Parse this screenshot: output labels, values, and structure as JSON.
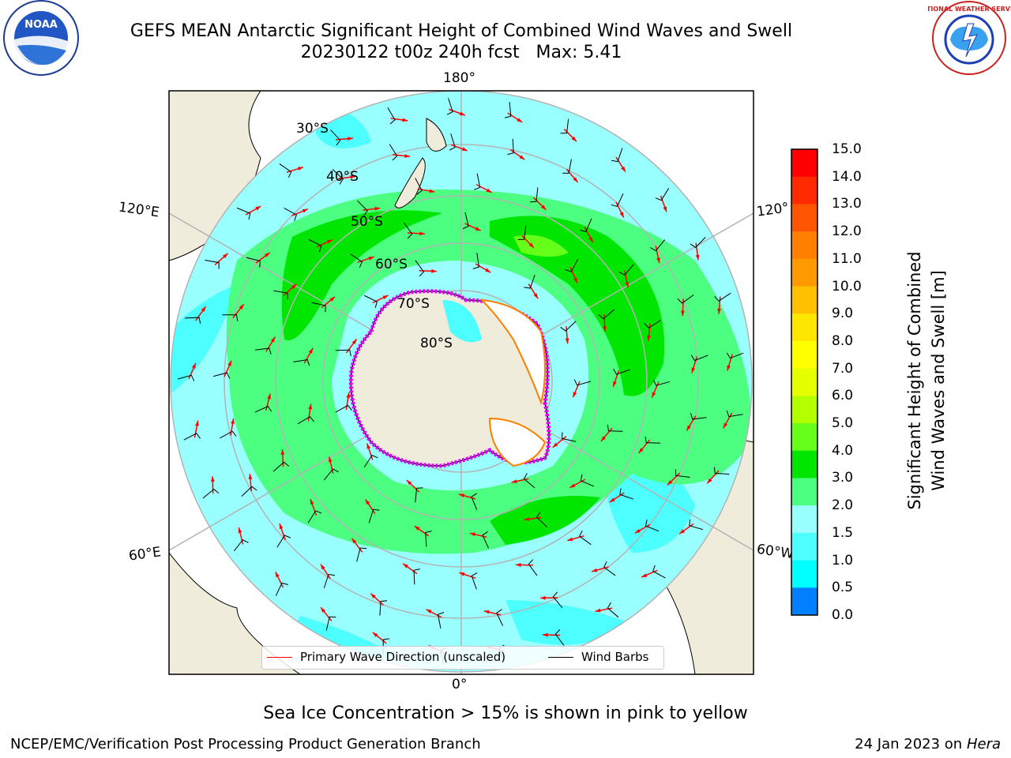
{
  "header": {
    "title_line1": "GEFS MEAN Antarctic Significant Height of Combined Wind Waves and Swell",
    "title_line2": "20230122 t00z 240h fcst   Max: 5.41"
  },
  "logos": {
    "left": {
      "name": "noaa-logo",
      "text": "NOAA"
    },
    "right": {
      "name": "nws-logo",
      "text": "NATIONAL WEATHER SERVICE"
    }
  },
  "map": {
    "projection": "south-polar-stereographic",
    "longitude_labels": {
      "top": "180°",
      "bottom": "0°",
      "upper_left": "120°E",
      "lower_left": "60°E",
      "upper_right": "120°",
      "lower_right": "60°W"
    },
    "latitude_labels": [
      "30°S",
      "40°S",
      "50°S",
      "60°S",
      "70°S",
      "80°S"
    ],
    "colors": {
      "land": "#efecdc",
      "ocean_2_3": "#99ffff",
      "ocean_1_5_2": "#4dffff",
      "wave_3_4": "#4dff80",
      "wave_4_5": "#00e600",
      "wave_5_6": "#66ff1a",
      "ice_edge": "#e600ff",
      "gridline": "#b3b3b3",
      "arrow": "#ff0000",
      "barb": "#000000"
    }
  },
  "legend": {
    "primary_wave": "Primary Wave Direction (unscaled)",
    "wind_barbs": "Wind Barbs"
  },
  "colorbar": {
    "label_line1": "Significant Height of Combined",
    "label_line2": "Wind Waves and Swell [m]",
    "ticks": [
      "15.0",
      "14.0",
      "13.0",
      "12.0",
      "11.0",
      "10.0",
      "9.0",
      "8.0",
      "7.0",
      "6.0",
      "5.0",
      "4.0",
      "3.0",
      "2.0",
      "1.5",
      "1.0",
      "0.5",
      "0.0"
    ],
    "colors": [
      "#ff0000",
      "#ff2a00",
      "#ff5500",
      "#ff8000",
      "#ff9900",
      "#ffc000",
      "#ffe600",
      "#ffff00",
      "#e6ff00",
      "#b3ff00",
      "#66ff1a",
      "#00e600",
      "#4dff80",
      "#99ffff",
      "#4dffff",
      "#00ffff",
      "#007fff",
      "#0000ff"
    ]
  },
  "caption": "Sea Ice Concentration > 15% is shown in pink to yellow",
  "footer": {
    "left": "NCEP/EMC/Verification Post Processing Product Generation Branch",
    "right_prefix": "24 Jan 2023 on ",
    "right_host": "Hera"
  }
}
